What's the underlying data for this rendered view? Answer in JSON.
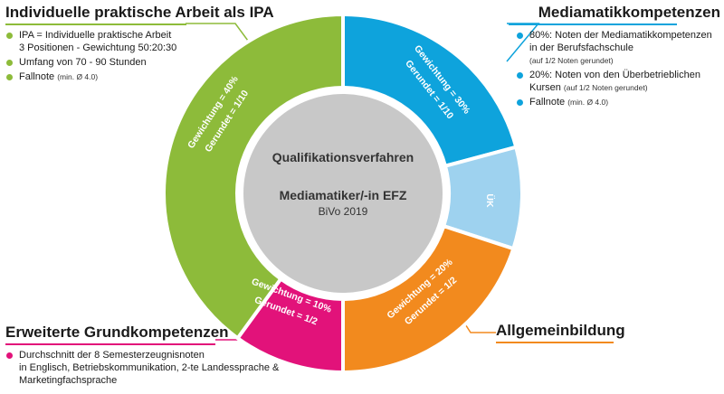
{
  "colors": {
    "green": "#8dbb3a",
    "blue": "#0ea3dc",
    "lightblue": "#9ed2ef",
    "orange": "#f28a1e",
    "magenta": "#e2127a",
    "center": "#c8c8c8",
    "white": "#ffffff"
  },
  "center": {
    "line1": "Qualifikationsverfahren",
    "line2": "Mediamatiker/-in EFZ",
    "line3": "BiVo 2019"
  },
  "segments": {
    "ipa": {
      "gewichtung": "Gewichtung = 40%",
      "gerundet": "Gerundet = 1/10"
    },
    "mediamatik": {
      "gewichtung": "Gewichtung = 30%",
      "gerundet": "Gerundet = 1/10"
    },
    "uk": {
      "label": "ÜK"
    },
    "allgemein": {
      "gewichtung": "Gewichtung = 20%",
      "gerundet": "Gerundet = 1/2"
    },
    "erweitert": {
      "gewichtung": "Gewichtung = 10%",
      "gerundet": "Gerundet = 1/2"
    }
  },
  "ipa_panel": {
    "title": "Individuelle praktische Arbeit als IPA",
    "items": [
      {
        "text": "IPA = Individuelle praktische Arbeit",
        "text2": "3 Positionen - Gewichtung 50:20:30"
      },
      {
        "text": "Umfang von 70 - 90 Stunden"
      },
      {
        "text": "Fallnote",
        "note": "(min. Ø 4.0)"
      }
    ]
  },
  "media_panel": {
    "title": "Mediamatikkompetenzen",
    "items": [
      {
        "text": "80%: Noten der Mediamatikkompetenzen",
        "text2": "in der Berufsfachschule",
        "note": "(auf 1/2 Noten gerundet)"
      },
      {
        "text": "20%: Noten von den Überbetrieblichen",
        "text2": "Kursen",
        "note": "(auf 1/2 Noten gerundet)"
      },
      {
        "text": "Fallnote",
        "note": "(min. Ø 4.0)"
      }
    ]
  },
  "erweitert_panel": {
    "title": "Erweiterte Grundkompetenzen",
    "items": [
      {
        "text": "Durchschnitt der 8 Semesterzeugnisnoten",
        "text2": "in Englisch, Betriebskommunikation, 2-te Landessprache &",
        "text3": "Marketingfachsprache"
      }
    ]
  },
  "allgemein_panel": {
    "title": "Allgemeinbildung"
  }
}
